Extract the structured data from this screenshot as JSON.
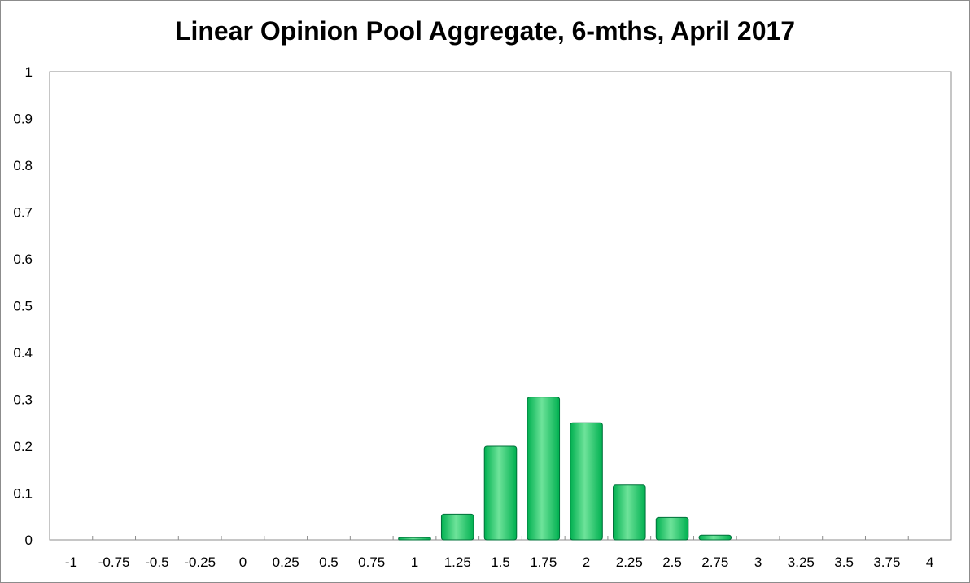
{
  "chart_data": {
    "type": "bar",
    "title": "Linear Opinion Pool Aggregate, 6-mths, April 2017",
    "xlabel": "",
    "ylabel": "",
    "categories": [
      "-1",
      "-0.75",
      "-0.5",
      "-0.25",
      "0",
      "0.25",
      "0.5",
      "0.75",
      "1",
      "1.25",
      "1.5",
      "1.75",
      "2",
      "2.25",
      "2.5",
      "2.75",
      "3",
      "3.25",
      "3.5",
      "3.75",
      "4"
    ],
    "values": [
      0,
      0,
      0,
      0,
      0,
      0,
      0,
      0,
      0.005,
      0.055,
      0.2,
      0.305,
      0.25,
      0.117,
      0.048,
      0.01,
      0,
      0,
      0,
      0,
      0
    ],
    "ylim": [
      0,
      1
    ],
    "yticks": [
      "0",
      "0.1",
      "0.2",
      "0.3",
      "0.4",
      "0.5",
      "0.6",
      "0.7",
      "0.8",
      "0.9",
      "1"
    ],
    "grid": false,
    "legend": "none",
    "colors": {
      "bar_fill": "#00b050",
      "bar_highlight": "#6ee39a",
      "bar_stroke": "#00703a"
    }
  }
}
